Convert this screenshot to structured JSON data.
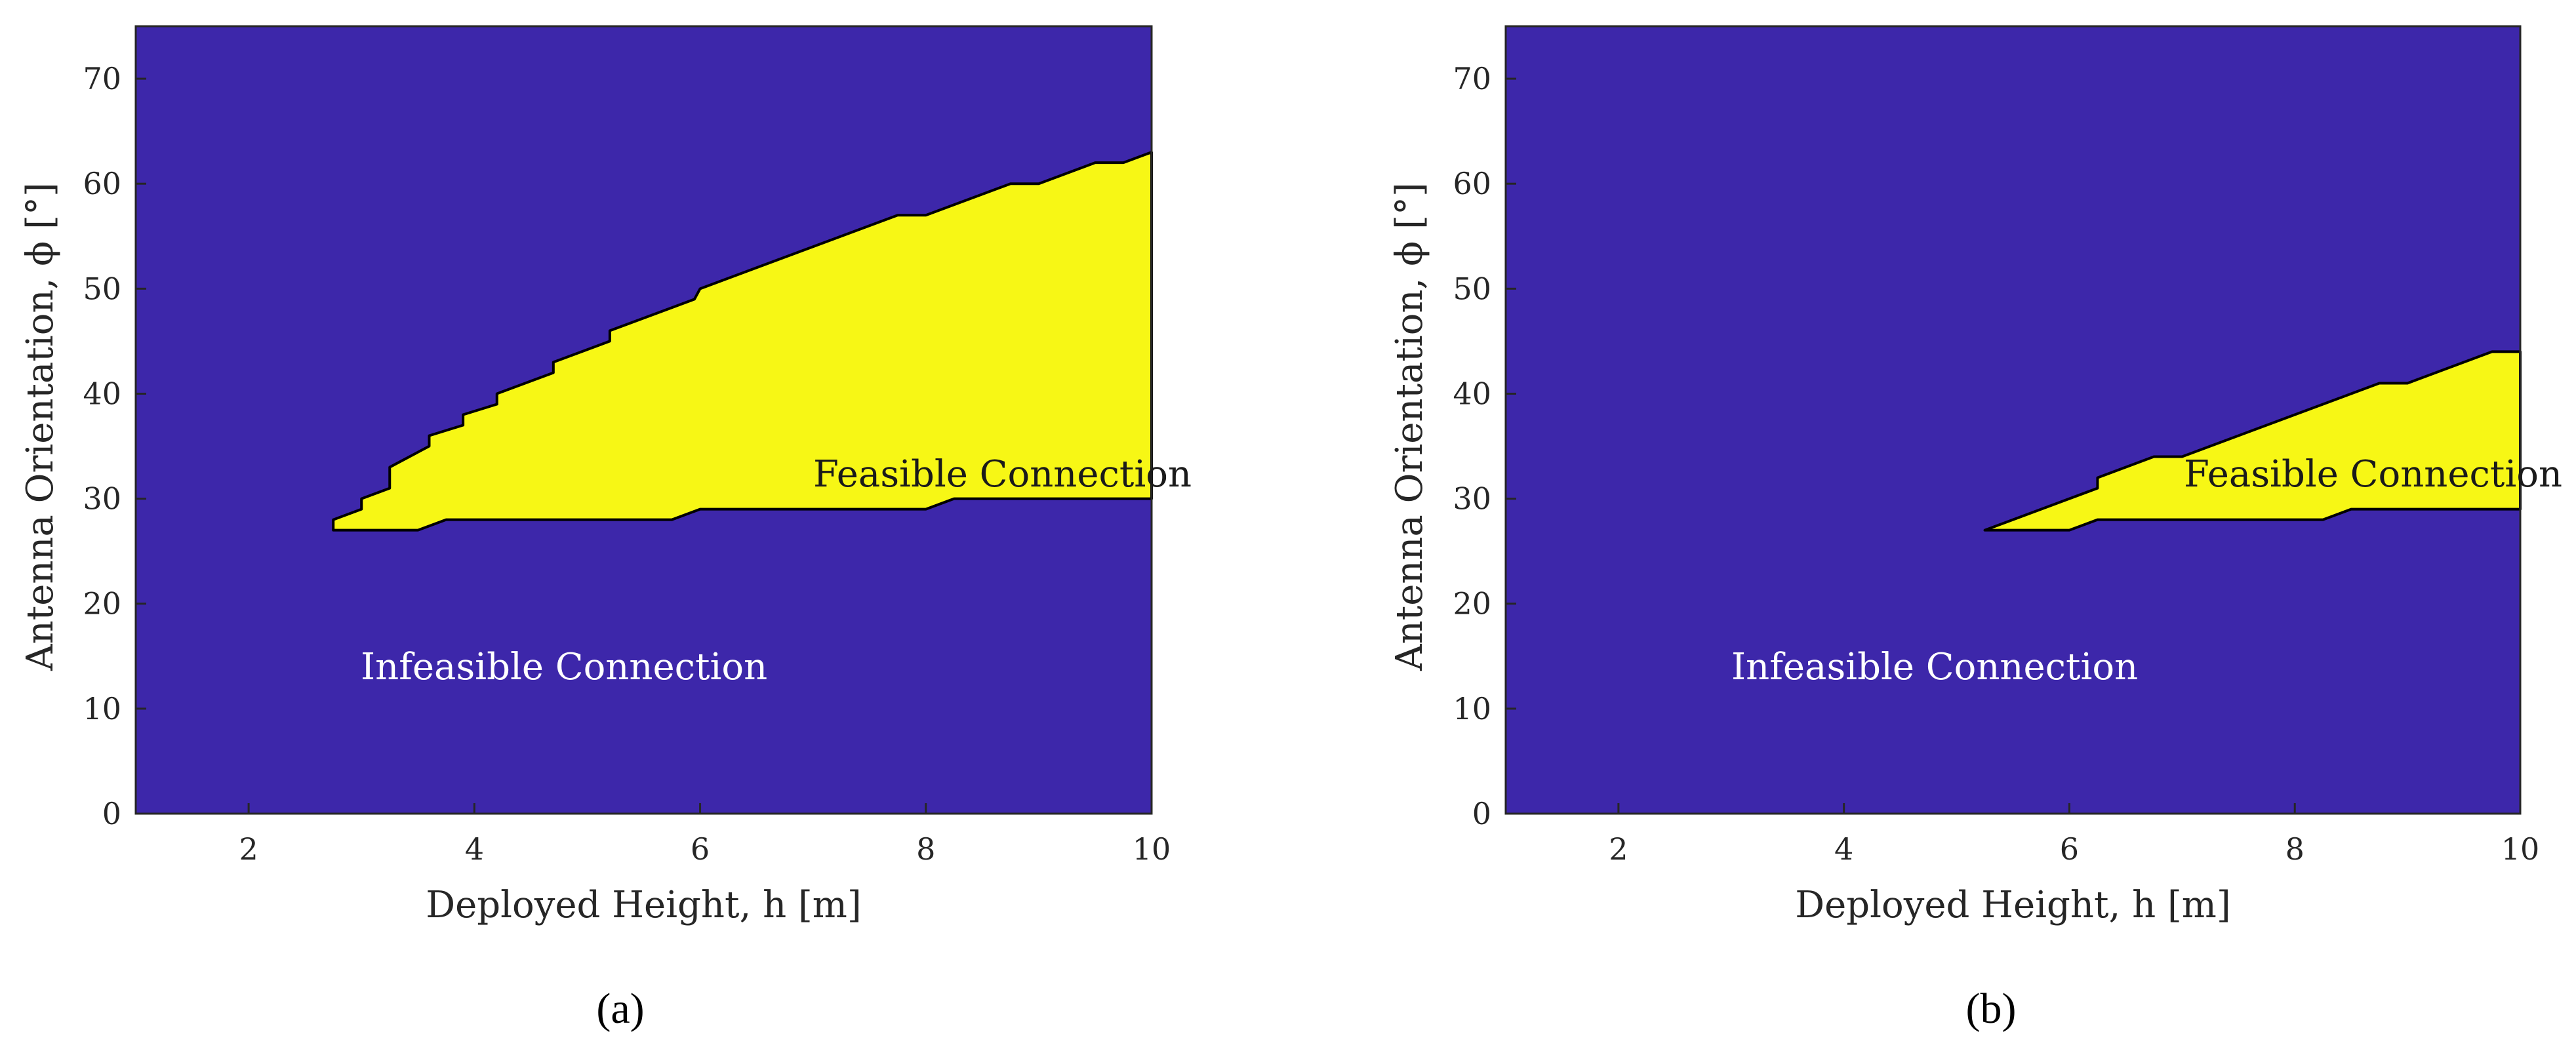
{
  "colors": {
    "infeasible": "#3d27aa",
    "feasible": "#f7f715",
    "axis": "#262626"
  },
  "chart_data": [
    {
      "type": "heatmap",
      "panel_label": "(a)",
      "xlabel": "Deployed Height, h [m]",
      "ylabel": "Antenna Orientation, ϕ [°]",
      "xlim": [
        1,
        10
      ],
      "ylim": [
        0,
        75
      ],
      "xticks": [
        2,
        4,
        6,
        8,
        10
      ],
      "yticks": [
        0,
        10,
        20,
        30,
        40,
        50,
        60,
        70
      ],
      "feasible_label": "Feasible Connection",
      "infeasible_label": "Infeasible Connection",
      "feasible_region_boundary": [
        [
          2.75,
          28
        ],
        [
          3.0,
          29
        ],
        [
          3.0,
          30
        ],
        [
          3.25,
          31
        ],
        [
          3.25,
          33
        ],
        [
          3.6,
          35
        ],
        [
          3.6,
          36
        ],
        [
          3.9,
          37
        ],
        [
          3.9,
          38
        ],
        [
          4.2,
          39
        ],
        [
          4.2,
          40
        ],
        [
          4.7,
          42
        ],
        [
          4.7,
          43
        ],
        [
          5.2,
          45
        ],
        [
          5.2,
          46
        ],
        [
          5.95,
          49
        ],
        [
          6.0,
          50
        ],
        [
          7.75,
          57
        ],
        [
          8.0,
          57
        ],
        [
          8.75,
          60
        ],
        [
          9.0,
          60
        ],
        [
          9.5,
          62
        ],
        [
          9.75,
          62
        ],
        [
          10.0,
          63
        ],
        [
          10.0,
          30
        ],
        [
          8.25,
          30
        ],
        [
          8.0,
          29
        ],
        [
          6.0,
          29
        ],
        [
          5.75,
          28
        ],
        [
          3.75,
          28
        ],
        [
          3.5,
          27
        ],
        [
          2.75,
          27
        ]
      ]
    },
    {
      "type": "heatmap",
      "panel_label": "(b)",
      "xlabel": "Deployed Height, h [m]",
      "ylabel": "Antenna Orientation, ϕ [°]",
      "xlim": [
        1,
        10
      ],
      "ylim": [
        0,
        75
      ],
      "xticks": [
        2,
        4,
        6,
        8,
        10
      ],
      "yticks": [
        0,
        10,
        20,
        30,
        40,
        50,
        60,
        70
      ],
      "feasible_label": "Feasible Connection",
      "infeasible_label": "Infeasible Connection",
      "feasible_region_boundary": [
        [
          5.25,
          27
        ],
        [
          6.25,
          31
        ],
        [
          6.25,
          32
        ],
        [
          6.75,
          34
        ],
        [
          7.0,
          34
        ],
        [
          8.75,
          41
        ],
        [
          9.0,
          41
        ],
        [
          9.75,
          44
        ],
        [
          10.0,
          44
        ],
        [
          10.0,
          29
        ],
        [
          8.5,
          29
        ],
        [
          8.25,
          28
        ],
        [
          6.25,
          28
        ],
        [
          6.0,
          27
        ]
      ]
    }
  ]
}
